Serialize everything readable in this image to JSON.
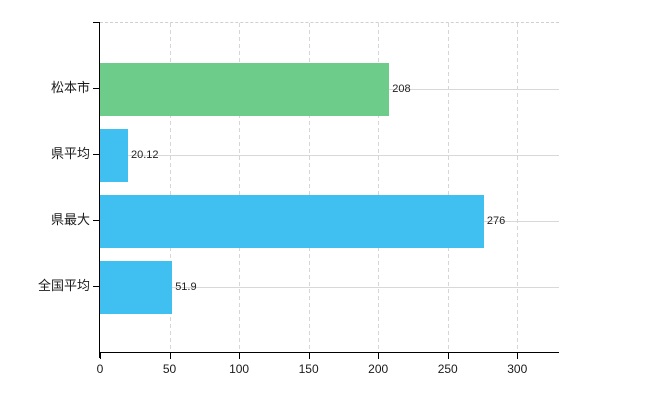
{
  "chart_data": {
    "type": "bar",
    "orientation": "horizontal",
    "title": "",
    "xlabel": "",
    "ylabel": "",
    "categories": [
      "松本市",
      "県平均",
      "県最大",
      "全国平均"
    ],
    "values": [
      208,
      20.12,
      276,
      51.9
    ],
    "value_labels": [
      "208",
      "20.12",
      "276",
      "51.9"
    ],
    "bar_colors": [
      "#6ecc8a",
      "#40c0f0",
      "#40c0f0",
      "#40c0f0"
    ],
    "x_ticks": [
      0,
      50,
      100,
      150,
      200,
      250,
      300
    ],
    "x_tick_labels": [
      "0",
      "50",
      "100",
      "150",
      "200",
      "250",
      "300"
    ],
    "xlim": [
      0,
      330
    ],
    "grid": true,
    "grid_color": "#d8d8d8",
    "axis_color": "#000000",
    "text_color": "#1a1a1a",
    "legend_position": "none",
    "background_color": "#ffffff"
  }
}
